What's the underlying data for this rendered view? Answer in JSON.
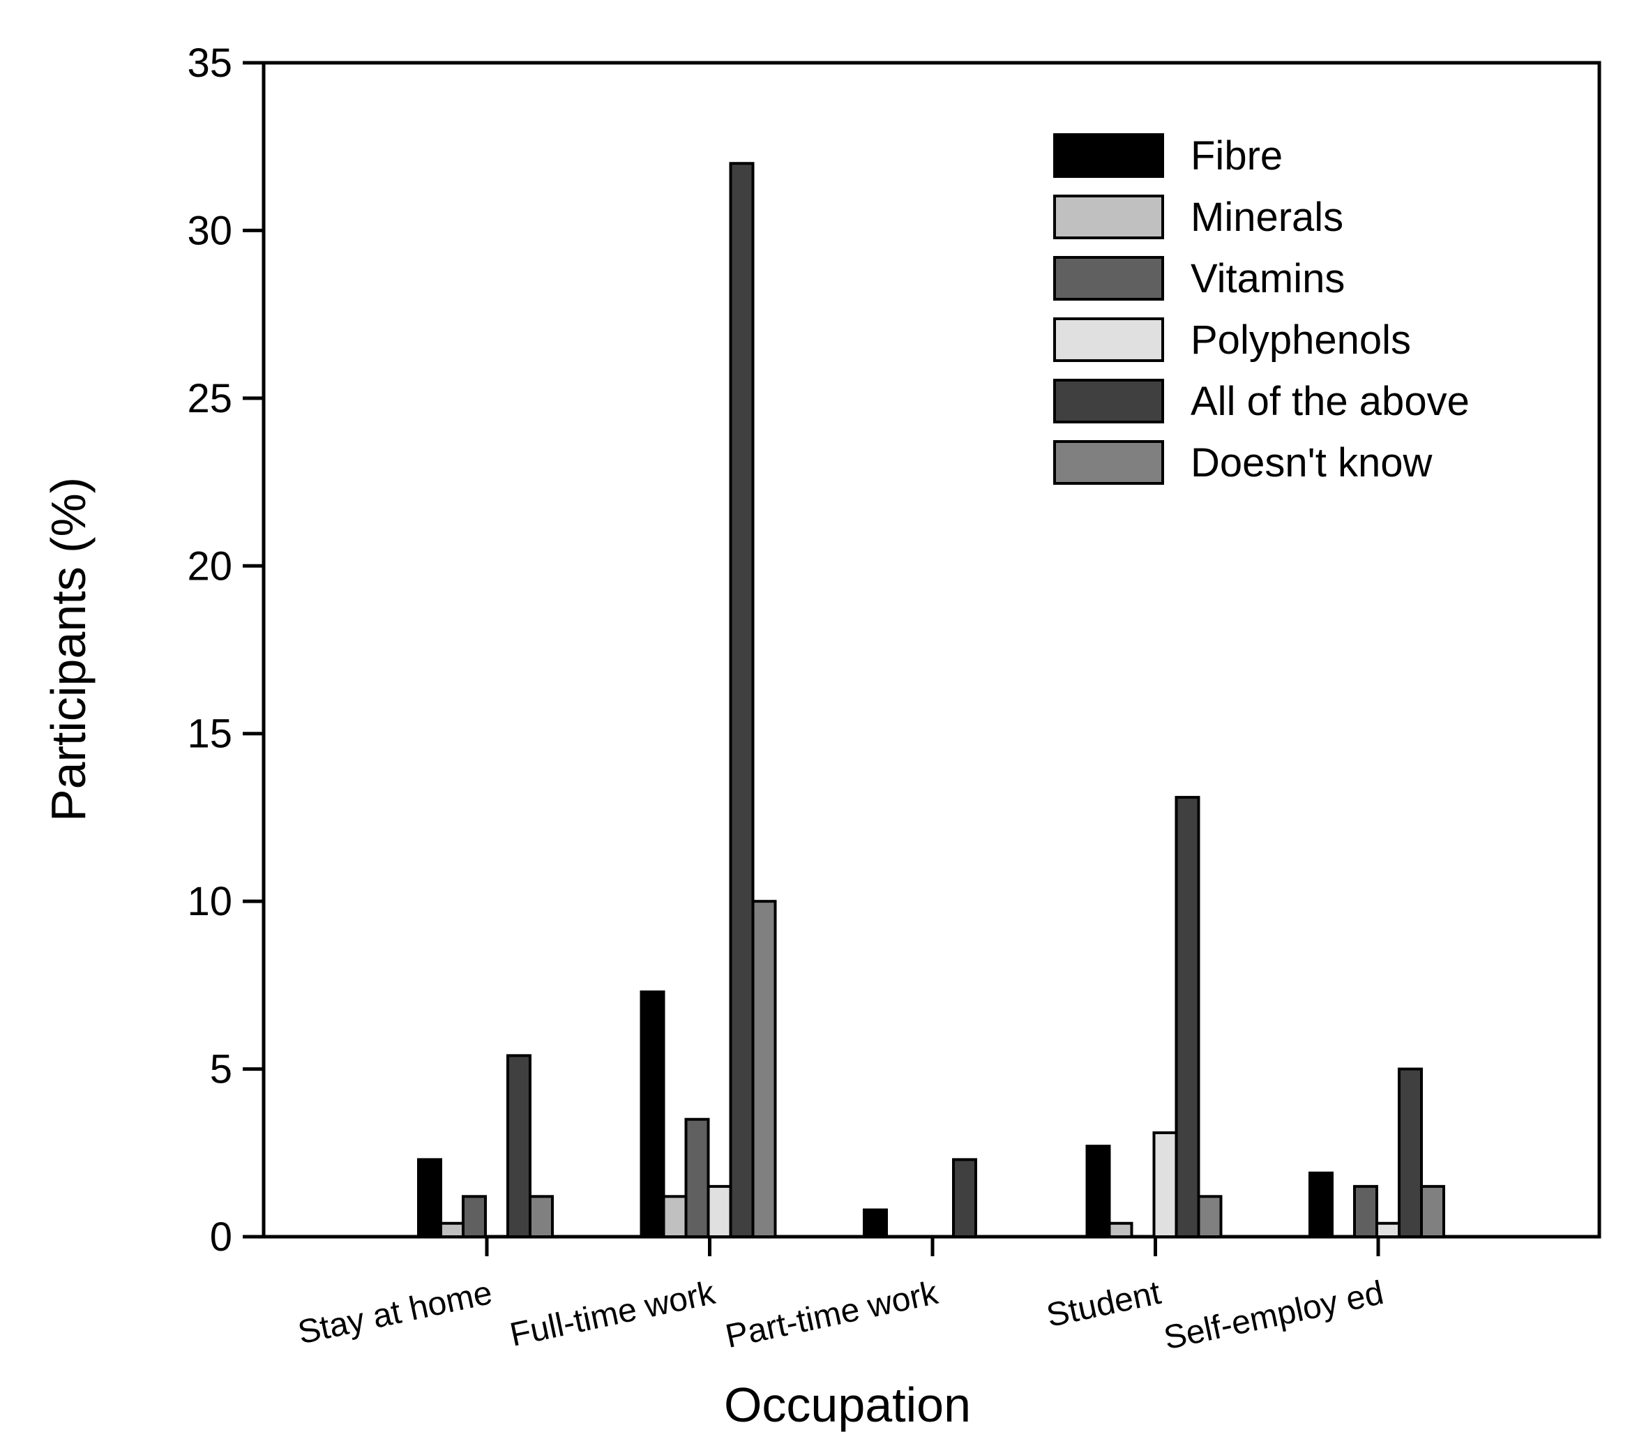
{
  "chart_data": {
    "type": "bar",
    "title": "",
    "xlabel": "Occupation",
    "ylabel": "Participants (%)",
    "ylim": [
      0,
      35
    ],
    "yticks": [
      0,
      5,
      10,
      15,
      20,
      25,
      30,
      35
    ],
    "ytick_labels": [
      "0",
      "5",
      "10",
      "15",
      "20",
      "25",
      "30",
      "35"
    ],
    "grid": false,
    "legend_position": "top-right",
    "categories": [
      "Stay  at home",
      "Full-time work",
      "Part-time work",
      "Student",
      "Self-employ ed"
    ],
    "series": [
      {
        "name": "Fibre",
        "color": "#000000",
        "values": [
          2.3,
          7.3,
          0.8,
          2.7,
          1.9
        ]
      },
      {
        "name": "Minerals",
        "color": "#c0c0c0",
        "values": [
          0.4,
          1.2,
          0,
          0.4,
          0
        ]
      },
      {
        "name": "Vitamins",
        "color": "#606060",
        "values": [
          1.2,
          3.5,
          0,
          0,
          1.5
        ]
      },
      {
        "name": "Polyphenols",
        "color": "#e0e0e0",
        "values": [
          0,
          1.5,
          0,
          3.1,
          0.4
        ]
      },
      {
        "name": "All of the above",
        "color": "#404040",
        "values": [
          5.4,
          32,
          2.3,
          13.1,
          5
        ]
      },
      {
        "name": "Doesn't know",
        "color": "#808080",
        "values": [
          1.2,
          10,
          0,
          1.2,
          1.5
        ]
      }
    ]
  }
}
